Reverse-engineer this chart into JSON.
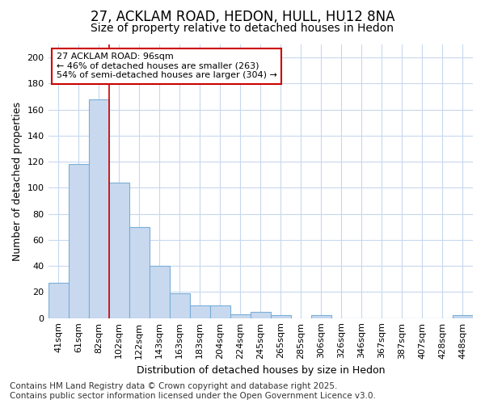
{
  "title": "27, ACKLAM ROAD, HEDON, HULL, HU12 8NA",
  "subtitle": "Size of property relative to detached houses in Hedon",
  "xlabel": "Distribution of detached houses by size in Hedon",
  "ylabel": "Number of detached properties",
  "categories": [
    "41sqm",
    "61sqm",
    "82sqm",
    "102sqm",
    "122sqm",
    "143sqm",
    "163sqm",
    "183sqm",
    "204sqm",
    "224sqm",
    "245sqm",
    "265sqm",
    "285sqm",
    "306sqm",
    "326sqm",
    "346sqm",
    "367sqm",
    "387sqm",
    "407sqm",
    "428sqm",
    "448sqm"
  ],
  "values": [
    27,
    118,
    168,
    104,
    70,
    40,
    19,
    10,
    10,
    3,
    5,
    2,
    0,
    2,
    0,
    0,
    0,
    0,
    0,
    0,
    2
  ],
  "bar_color": "#c8d9ef",
  "bar_edge_color": "#7aaed6",
  "vline_index": 2.5,
  "vline_color": "#cc0000",
  "annotation_text": "27 ACKLAM ROAD: 96sqm\n← 46% of detached houses are smaller (263)\n54% of semi-detached houses are larger (304) →",
  "annotation_box_color": "#ffffff",
  "annotation_box_edge": "#cc0000",
  "ylim": [
    0,
    210
  ],
  "yticks": [
    0,
    20,
    40,
    60,
    80,
    100,
    120,
    140,
    160,
    180,
    200
  ],
  "footnote": "Contains HM Land Registry data © Crown copyright and database right 2025.\nContains public sector information licensed under the Open Government Licence v3.0.",
  "bg_color": "#ffffff",
  "grid_color": "#c8d8ef",
  "title_fontsize": 12,
  "subtitle_fontsize": 10,
  "axis_label_fontsize": 9,
  "tick_fontsize": 8,
  "footnote_fontsize": 7.5
}
